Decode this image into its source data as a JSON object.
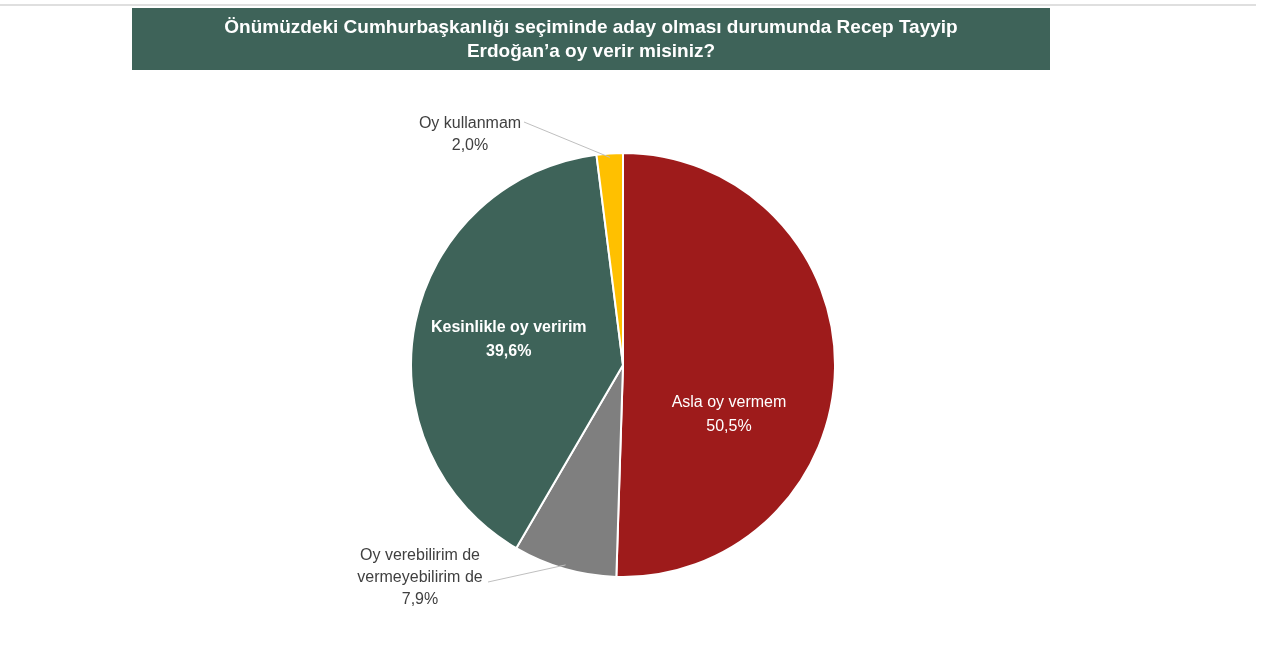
{
  "chart_data": {
    "type": "pie",
    "title": "Önümüzdeki Cumhurbaşkanlığı seçiminde aday olması durumunda Recep Tayyip Erdoğan’a oy verir misiniz?",
    "categories": [
      "Asla oy vermem",
      "Oy verebilirim de vermeyebilirim de",
      "Kesinlikle oy veririm",
      "Oy kullanmam"
    ],
    "values": [
      50.5,
      7.9,
      39.6,
      2.0
    ],
    "value_labels": [
      "50,5%",
      "7,9%",
      "39,6%",
      "2,0%"
    ],
    "colors": [
      "#9e1b1b",
      "#7f7f7f",
      "#3e6359",
      "#ffc000"
    ]
  }
}
